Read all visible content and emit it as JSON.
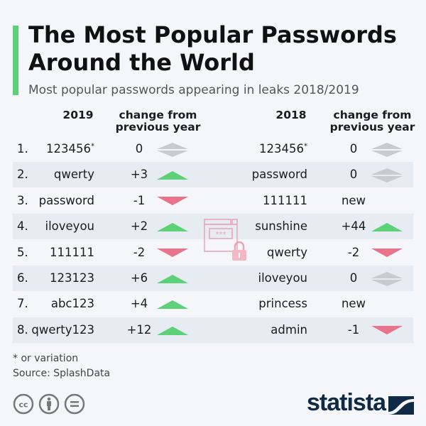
{
  "title": "The Most Popular Passwords Around the World",
  "subtitle": "Most popular passwords appearing in leaks 2018/2019",
  "headers": {
    "y2019": "2019",
    "change": "change from previous year",
    "y2018": "2018"
  },
  "chart_data": {
    "type": "table",
    "columns": [
      "rank",
      "2019",
      "change from previous year",
      "2018",
      "change from previous year"
    ],
    "rows": [
      {
        "rank": "1.",
        "pw2019": "123456",
        "star2019": "*",
        "ch2019": "0",
        "dir2019": "same",
        "pw2018": "123456",
        "star2018": "*",
        "ch2018": "0",
        "dir2018": "same"
      },
      {
        "rank": "2.",
        "pw2019": "qwerty",
        "star2019": "",
        "ch2019": "+3",
        "dir2019": "up",
        "pw2018": "password",
        "star2018": "",
        "ch2018": "0",
        "dir2018": "same"
      },
      {
        "rank": "3.",
        "pw2019": "password",
        "star2019": "",
        "ch2019": "-1",
        "dir2019": "down",
        "pw2018": "111111",
        "star2018": "",
        "ch2018": "new",
        "dir2018": "none"
      },
      {
        "rank": "4.",
        "pw2019": "iloveyou",
        "star2019": "",
        "ch2019": "+2",
        "dir2019": "up",
        "pw2018": "sunshine",
        "star2018": "",
        "ch2018": "+44",
        "dir2018": "up"
      },
      {
        "rank": "5.",
        "pw2019": "111111",
        "star2019": "",
        "ch2019": "-2",
        "dir2019": "down",
        "pw2018": "qwerty",
        "star2018": "",
        "ch2018": "-2",
        "dir2018": "down"
      },
      {
        "rank": "6.",
        "pw2019": "123123",
        "star2019": "",
        "ch2019": "+6",
        "dir2019": "up",
        "pw2018": "iloveyou",
        "star2018": "",
        "ch2018": "0",
        "dir2018": "same"
      },
      {
        "rank": "7.",
        "pw2019": "abc123",
        "star2019": "",
        "ch2019": "+4",
        "dir2019": "up",
        "pw2018": "princess",
        "star2018": "",
        "ch2018": "new",
        "dir2018": "none"
      },
      {
        "rank": "8.",
        "pw2019": "qwerty123",
        "star2019": "",
        "ch2019": "+12",
        "dir2019": "up",
        "pw2018": "admin",
        "star2018": "",
        "ch2018": "-1",
        "dir2018": "down"
      }
    ]
  },
  "colors": {
    "accent": "#5cd178",
    "up": "#5cd178",
    "down": "#e8738a",
    "same": "#c8cbd0",
    "brand": "#0f2a45"
  },
  "footnote": "* or variation",
  "source": "Source: SplashData",
  "brand": "statista",
  "license_icons": [
    "cc-icon",
    "by-icon",
    "nd-icon"
  ]
}
